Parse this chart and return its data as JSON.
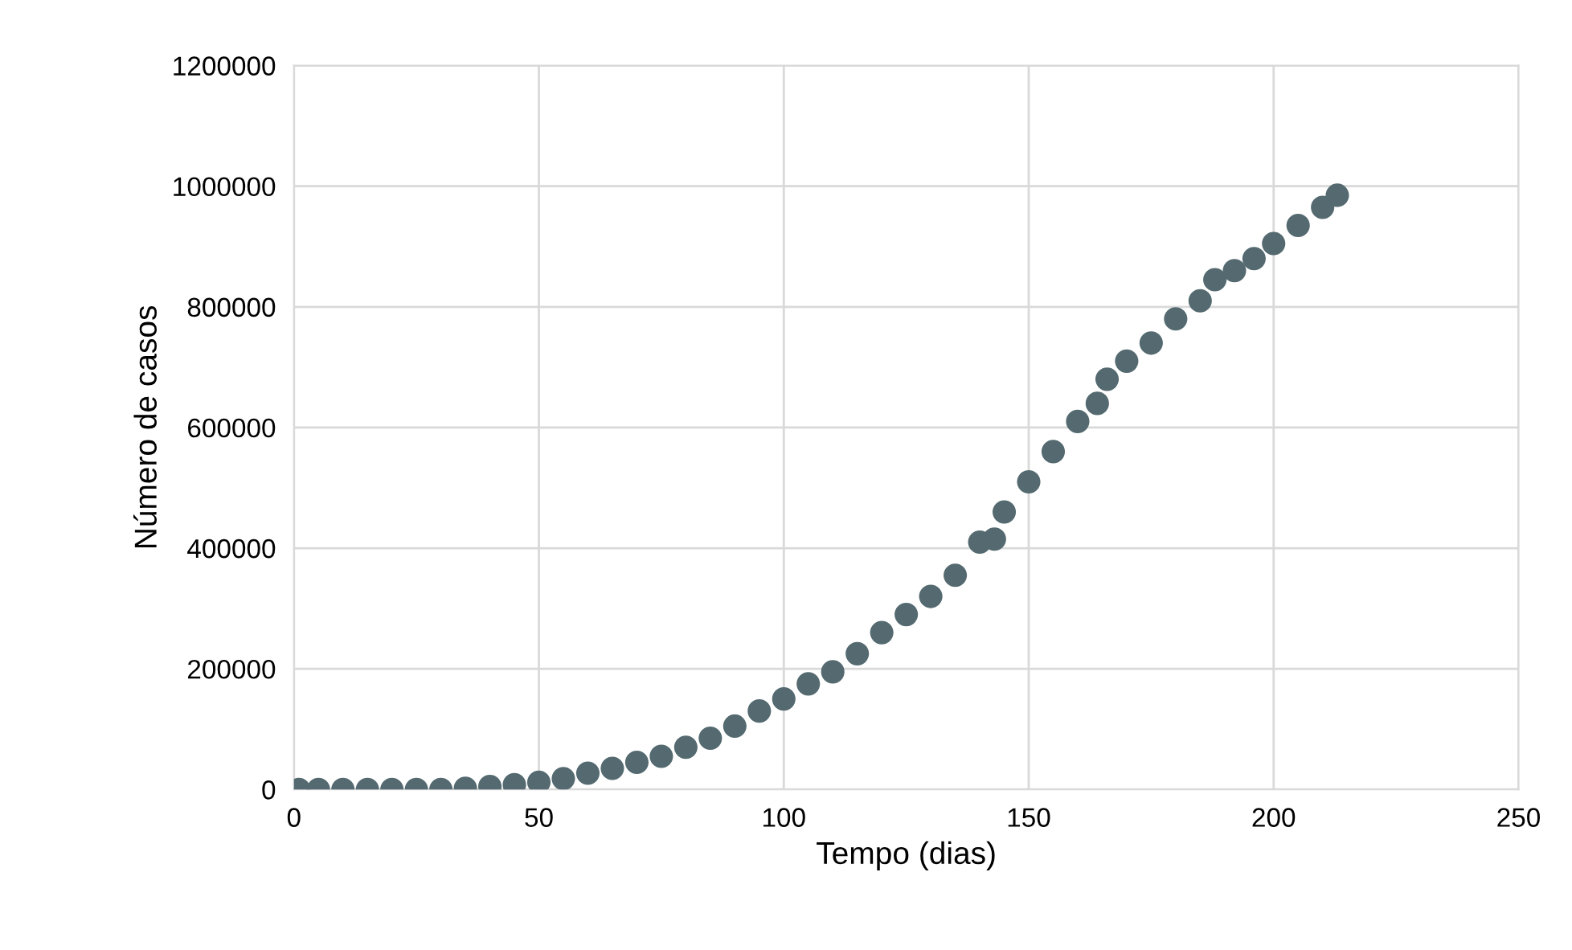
{
  "chart_data": {
    "type": "scatter",
    "xlabel": "Tempo (dias)",
    "ylabel": "Número de casos",
    "marker": "circle",
    "grid": true,
    "xlim": [
      0,
      250
    ],
    "xticks": [
      0,
      50,
      100,
      150,
      200,
      250
    ],
    "ylim": [
      0,
      1200000
    ],
    "yticks": [
      0,
      200000,
      400000,
      600000,
      800000,
      1000000,
      1200000
    ],
    "series": [
      {
        "color": "#546a70",
        "x": [
          1,
          5,
          10,
          15,
          20,
          25,
          30,
          35,
          40,
          45,
          50,
          55,
          60,
          65,
          70,
          75,
          80,
          85,
          90,
          95,
          100,
          105,
          110,
          115,
          120,
          125,
          130,
          135,
          140,
          143,
          145,
          150,
          155,
          160,
          164,
          166,
          170,
          175,
          180,
          185,
          188,
          192,
          196,
          200,
          205,
          210,
          213
        ],
        "values": [
          0,
          0,
          0,
          0,
          0,
          0,
          0,
          2000,
          5000,
          8000,
          12000,
          18000,
          27000,
          35000,
          45000,
          55000,
          70000,
          85000,
          105000,
          130000,
          150000,
          175000,
          195000,
          225000,
          260000,
          290000,
          320000,
          355000,
          410000,
          415000,
          460000,
          510000,
          560000,
          610000,
          640000,
          680000,
          710000,
          740000,
          780000,
          810000,
          845000,
          860000,
          880000,
          905000,
          935000,
          965000,
          985000
        ]
      }
    ]
  }
}
